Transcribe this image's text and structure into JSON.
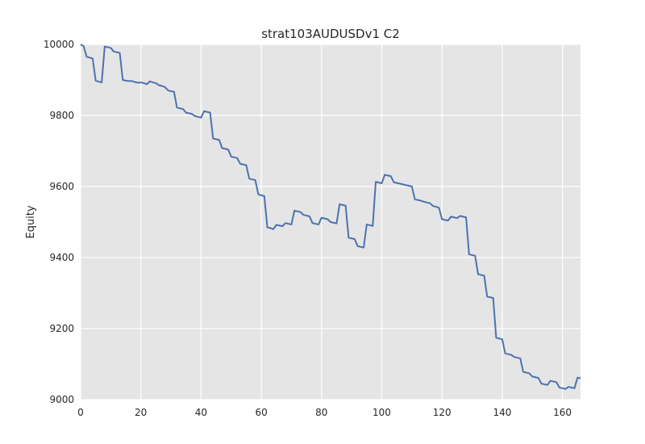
{
  "chart_data": {
    "type": "line",
    "title": "strat103AUDUSDv1 C2",
    "xlabel": "",
    "ylabel": "Equity",
    "xlim": [
      0,
      166
    ],
    "ylim": [
      9000,
      10000
    ],
    "xticks": [
      0,
      20,
      40,
      60,
      80,
      100,
      120,
      140,
      160
    ],
    "yticks": [
      9000,
      9200,
      9400,
      9600,
      9800,
      10000
    ],
    "grid": true,
    "colors": {
      "background": "#e5e5e5",
      "grid": "#ffffff",
      "line": "#4c72b0"
    },
    "series": [
      {
        "name": "",
        "x": [
          0,
          1,
          2,
          3,
          4,
          5,
          6,
          7,
          8,
          9,
          10,
          11,
          12,
          13,
          14,
          15,
          16,
          17,
          18,
          19,
          20,
          21,
          22,
          23,
          24,
          25,
          26,
          27,
          28,
          29,
          30,
          31,
          32,
          33,
          34,
          35,
          36,
          37,
          38,
          39,
          40,
          41,
          42,
          43,
          44,
          45,
          46,
          47,
          48,
          49,
          50,
          51,
          52,
          53,
          54,
          55,
          56,
          57,
          58,
          59,
          60,
          61,
          62,
          63,
          64,
          65,
          66,
          67,
          68,
          69,
          70,
          71,
          72,
          73,
          74,
          75,
          76,
          77,
          78,
          79,
          80,
          81,
          82,
          83,
          84,
          85,
          86,
          87,
          88,
          89,
          90,
          91,
          92,
          93,
          94,
          95,
          96,
          97,
          98,
          99,
          100,
          101,
          102,
          103,
          104,
          105,
          106,
          107,
          108,
          109,
          110,
          111,
          112,
          113,
          114,
          115,
          116,
          117,
          118,
          119,
          120,
          121,
          122,
          123,
          124,
          125,
          126,
          127,
          128,
          129,
          130,
          131,
          132,
          133,
          134,
          135,
          136,
          137,
          138,
          139,
          140,
          141,
          142,
          143,
          144,
          145,
          146,
          147,
          148,
          149,
          150,
          151,
          152,
          153,
          154,
          155,
          156,
          157,
          158,
          159,
          160,
          161,
          162,
          163,
          164,
          165,
          166
        ],
        "values": [
          10000,
          9995,
          9965,
          9963,
          9960,
          9898,
          9895,
          9893,
          9994,
          9992,
          9990,
          9980,
          9978,
          9976,
          9900,
          9898,
          9897,
          9897,
          9894,
          9892,
          9893,
          9891,
          9888,
          9896,
          9893,
          9891,
          9885,
          9883,
          9880,
          9871,
          9868,
          9867,
          9822,
          9820,
          9818,
          9808,
          9806,
          9804,
          9798,
          9796,
          9794,
          9812,
          9810,
          9808,
          9735,
          9733,
          9731,
          9708,
          9706,
          9704,
          9684,
          9682,
          9680,
          9664,
          9662,
          9660,
          9622,
          9620,
          9618,
          9578,
          9575,
          9573,
          9485,
          9483,
          9480,
          9492,
          9490,
          9488,
          9497,
          9495,
          9493,
          9532,
          9530,
          9528,
          9520,
          9518,
          9516,
          9497,
          9495,
          9493,
          9512,
          9510,
          9508,
          9500,
          9498,
          9496,
          9550,
          9548,
          9546,
          9456,
          9454,
          9452,
          9432,
          9430,
          9428,
          9493,
          9491,
          9489,
          9613,
          9611,
          9609,
          9633,
          9631,
          9629,
          9612,
          9610,
          9608,
          9606,
          9604,
          9602,
          9600,
          9564,
          9562,
          9560,
          9557,
          9555,
          9553,
          9545,
          9543,
          9540,
          9508,
          9506,
          9504,
          9515,
          9513,
          9511,
          9517,
          9515,
          9513,
          9409,
          9407,
          9405,
          9353,
          9351,
          9349,
          9290,
          9288,
          9286,
          9174,
          9172,
          9170,
          9130,
          9128,
          9126,
          9120,
          9118,
          9116,
          9078,
          9076,
          9074,
          9065,
          9063,
          9061,
          9045,
          9043,
          9041,
          9053,
          9051,
          9049,
          9034,
          9032,
          9030,
          9036,
          9034,
          9032,
          9062,
          9060
        ]
      }
    ]
  }
}
